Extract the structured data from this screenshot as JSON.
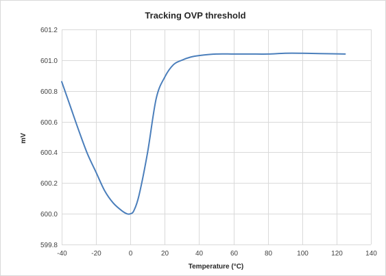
{
  "chart_data": {
    "type": "line",
    "title": "Tracking OVP threshold",
    "xlabel": "Temperature (°C)",
    "ylabel": "mV",
    "xlim": [
      -40,
      140
    ],
    "ylim": [
      599.8,
      601.2
    ],
    "xticks": [
      -40,
      -20,
      0,
      20,
      40,
      60,
      80,
      100,
      120,
      140
    ],
    "yticks": [
      599.8,
      600.0,
      600.2,
      600.4,
      600.6,
      600.8,
      601.0,
      601.2
    ],
    "xtick_labels": [
      "-40",
      "-20",
      "0",
      "20",
      "40",
      "60",
      "80",
      "100",
      "120",
      "140"
    ],
    "ytick_labels": [
      "599.8",
      "600.0",
      "600.2",
      "600.4",
      "600.6",
      "600.8",
      "601.0",
      "601.2"
    ],
    "grid": true,
    "legend": "none",
    "series": [
      {
        "color": "#4a7ebb",
        "x": [
          -40,
          -35,
          -30,
          -25,
          -20,
          -15,
          -10,
          -5,
          -2,
          0,
          2,
          5,
          10,
          15,
          20,
          25,
          30,
          35,
          40,
          50,
          60,
          70,
          80,
          90,
          100,
          110,
          125
        ],
        "y": [
          600.86,
          600.7,
          600.54,
          600.39,
          600.27,
          600.15,
          600.07,
          600.02,
          600.0,
          600.0,
          600.02,
          600.12,
          600.4,
          600.75,
          600.89,
          600.97,
          601.0,
          601.02,
          601.03,
          601.04,
          601.04,
          601.04,
          601.04,
          601.045,
          601.045,
          601.043,
          601.04
        ]
      }
    ]
  }
}
